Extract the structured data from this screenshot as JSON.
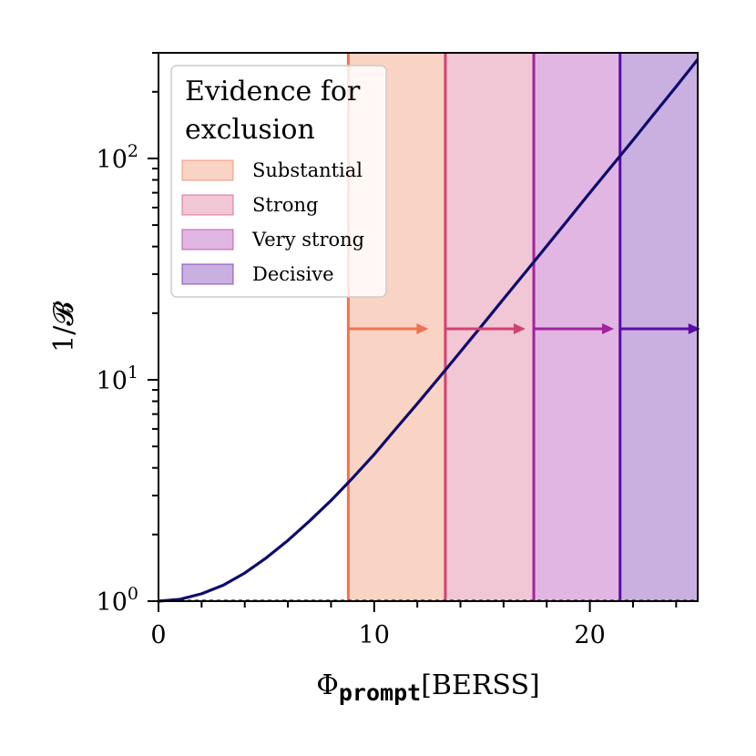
{
  "chart_data": {
    "type": "line",
    "xlabel": {
      "symbol": "Φ",
      "subscript": "prompt",
      "unit": "[BERSS]"
    },
    "ylabel": "1/𝓑",
    "xlim": [
      0,
      25
    ],
    "ylim": [
      1,
      300
    ],
    "yscale": "log",
    "x_ticks": [
      0,
      10,
      20
    ],
    "x_tick_labels": [
      "0",
      "10",
      "20"
    ],
    "y_ticks": [
      1,
      10,
      100
    ],
    "y_tick_labels": [
      {
        "base": "10",
        "exp": "0"
      },
      {
        "base": "10",
        "exp": "1"
      },
      {
        "base": "10",
        "exp": "2"
      }
    ],
    "curve": {
      "color": "#0d0a6e",
      "x": [
        0,
        1,
        2,
        3,
        4,
        5,
        6,
        7,
        8,
        9,
        10,
        11,
        12,
        13,
        14,
        15,
        16,
        17,
        18,
        19,
        20,
        21,
        22,
        23,
        24,
        25
      ],
      "y": [
        1.0,
        1.02,
        1.08,
        1.18,
        1.34,
        1.57,
        1.88,
        2.3,
        2.85,
        3.6,
        4.6,
        6.0,
        7.8,
        10.2,
        13.4,
        17.6,
        23.2,
        30.5,
        40.2,
        53.0,
        70.0,
        92.0,
        121,
        160,
        211,
        280
      ]
    },
    "reference_line": {
      "y": 1,
      "style": "dashed"
    },
    "regions": [
      {
        "name": "Substantial",
        "x_start": 8.8,
        "x_end": 13.3,
        "fill": "#f9d3c3",
        "line": "#f07350",
        "arrow_y": 17
      },
      {
        "name": "Strong",
        "x_start": 13.3,
        "x_end": 17.4,
        "fill": "#f1c6d5",
        "line": "#cf4370",
        "arrow_y": 17
      },
      {
        "name": "Very strong",
        "x_start": 17.4,
        "x_end": 21.4,
        "fill": "#e1b6e2",
        "line": "#a2229d",
        "arrow_y": 17
      },
      {
        "name": "Decisive",
        "x_start": 21.4,
        "x_end": 25,
        "fill": "#c9b0e0",
        "line": "#5b0aa8",
        "arrow_y": 17
      }
    ],
    "legend": {
      "title_lines": [
        "Evidence for",
        "exclusion"
      ],
      "placement": "top-left"
    }
  }
}
